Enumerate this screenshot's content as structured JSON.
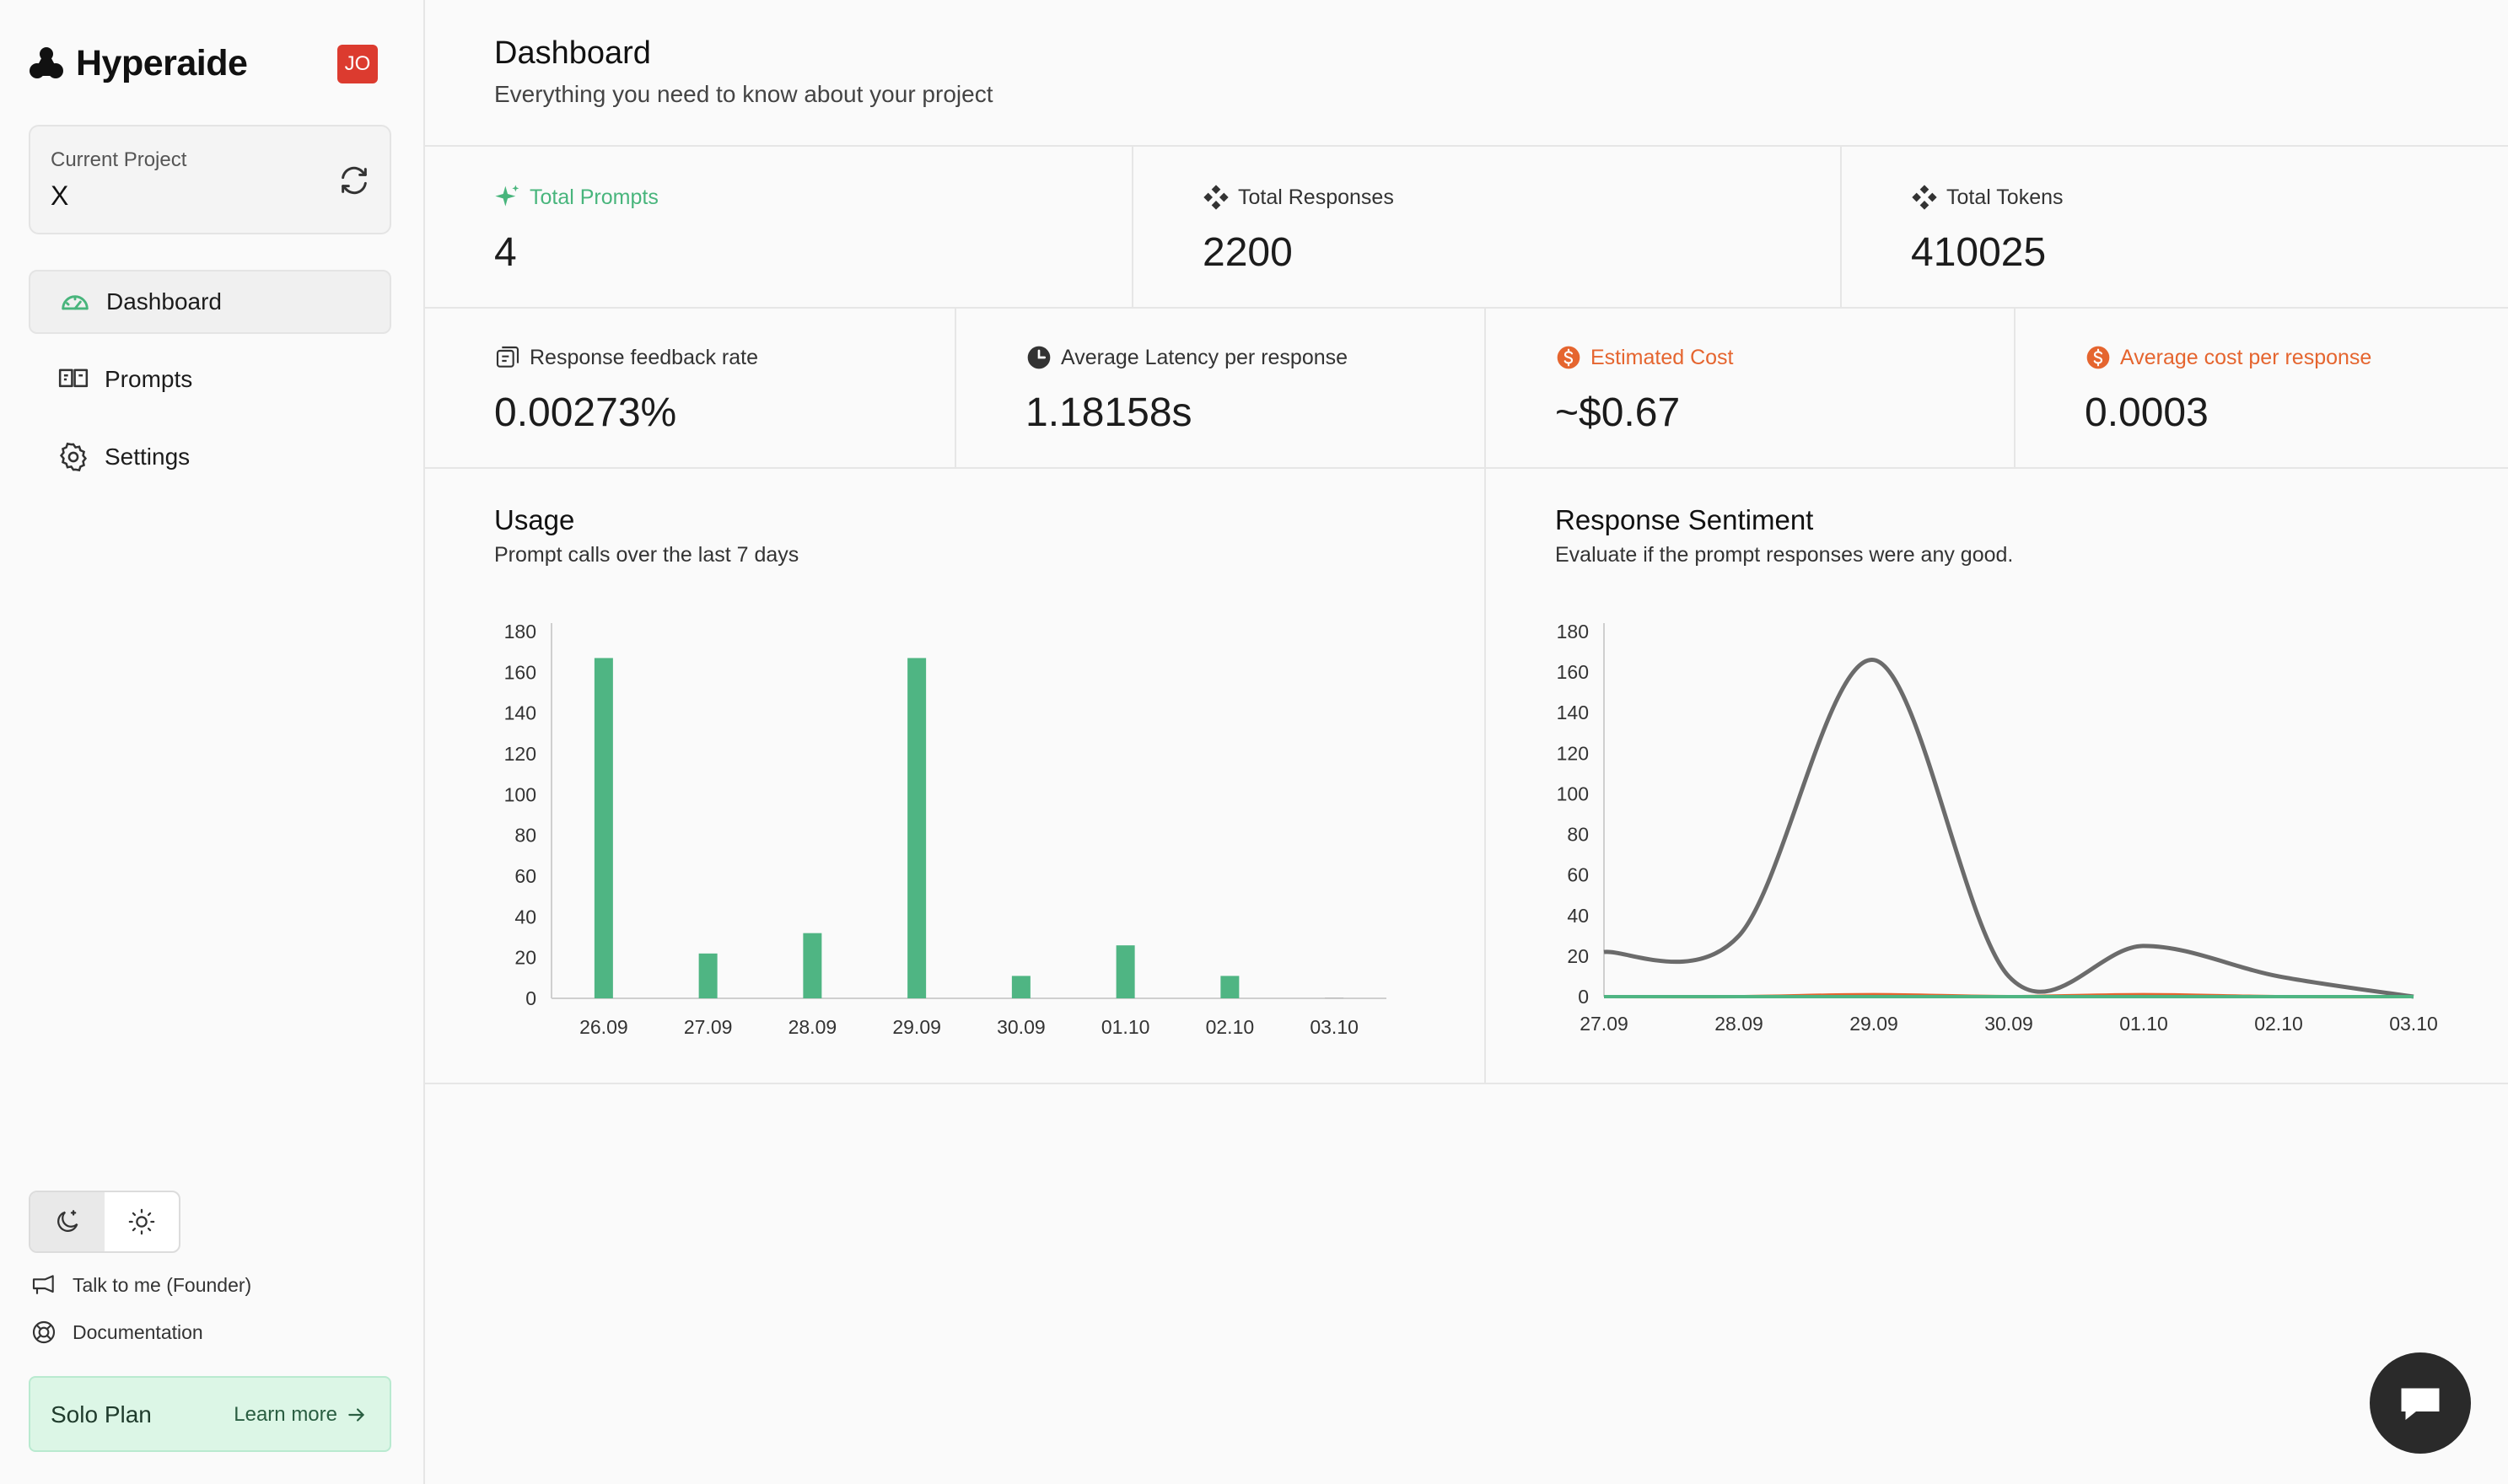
{
  "app": {
    "name": "Hyperaide",
    "user_initials": "JO"
  },
  "sidebar": {
    "project_label": "Current Project",
    "project_value": "X",
    "nav": [
      {
        "label": "Dashboard",
        "icon": "gauge-icon",
        "active": true
      },
      {
        "label": "Prompts",
        "icon": "prompt-icon",
        "active": false
      },
      {
        "label": "Settings",
        "icon": "gear-icon",
        "active": false
      }
    ],
    "theme": {
      "selected": "dark"
    },
    "links": [
      {
        "label": "Talk to me (Founder)",
        "icon": "megaphone-icon"
      },
      {
        "label": "Documentation",
        "icon": "lifebuoy-icon"
      }
    ],
    "plan": {
      "name": "Solo Plan",
      "cta": "Learn more"
    }
  },
  "header": {
    "title": "Dashboard",
    "subtitle": "Everything you need to know about your project"
  },
  "stats_row1": [
    {
      "label": "Total Prompts",
      "value": "4",
      "accent": "#48b57c"
    },
    {
      "label": "Total Responses",
      "value": "2200",
      "accent": ""
    },
    {
      "label": "Total Tokens",
      "value": "410025",
      "accent": ""
    }
  ],
  "stats_row2": [
    {
      "label": "Response feedback rate",
      "value": "0.00273%",
      "accent": ""
    },
    {
      "label": "Average Latency per response",
      "value": "1.18158s",
      "accent": ""
    },
    {
      "label": "Estimated Cost",
      "value": "~$0.67",
      "accent": "#e5652f"
    },
    {
      "label": "Average cost per response",
      "value": "0.0003",
      "accent": "#e5652f"
    }
  ],
  "usage": {
    "title": "Usage",
    "subtitle": "Prompt calls over the last 7 days"
  },
  "sentiment": {
    "title": "Response Sentiment",
    "subtitle": "Evaluate if the prompt responses were any good."
  },
  "chart_data": [
    {
      "type": "bar",
      "categories": [
        "26.09",
        "27.09",
        "28.09",
        "29.09",
        "30.09",
        "01.10",
        "02.10",
        "03.10"
      ],
      "values": [
        167,
        22,
        32,
        167,
        11,
        26,
        11,
        0
      ],
      "ylim": [
        0,
        180
      ],
      "yticks": [
        0,
        20,
        40,
        60,
        80,
        100,
        120,
        140,
        160,
        180
      ],
      "color": "#4fb583"
    },
    {
      "type": "line",
      "x": [
        "27.09",
        "28.09",
        "29.09",
        "30.09",
        "01.10",
        "02.10",
        "03.10"
      ],
      "ylim": [
        0,
        180
      ],
      "yticks": [
        0,
        20,
        40,
        60,
        80,
        100,
        120,
        140,
        160,
        180
      ],
      "series": [
        {
          "values": [
            22,
            30,
            166,
            10,
            25,
            10,
            0
          ],
          "color": "#6b6b6b"
        },
        {
          "values": [
            0,
            0,
            1,
            0,
            1,
            0,
            0
          ],
          "color": "#e5652f"
        },
        {
          "values": [
            0,
            0,
            0,
            0,
            0,
            0,
            0
          ],
          "color": "#4fb583"
        }
      ]
    }
  ]
}
